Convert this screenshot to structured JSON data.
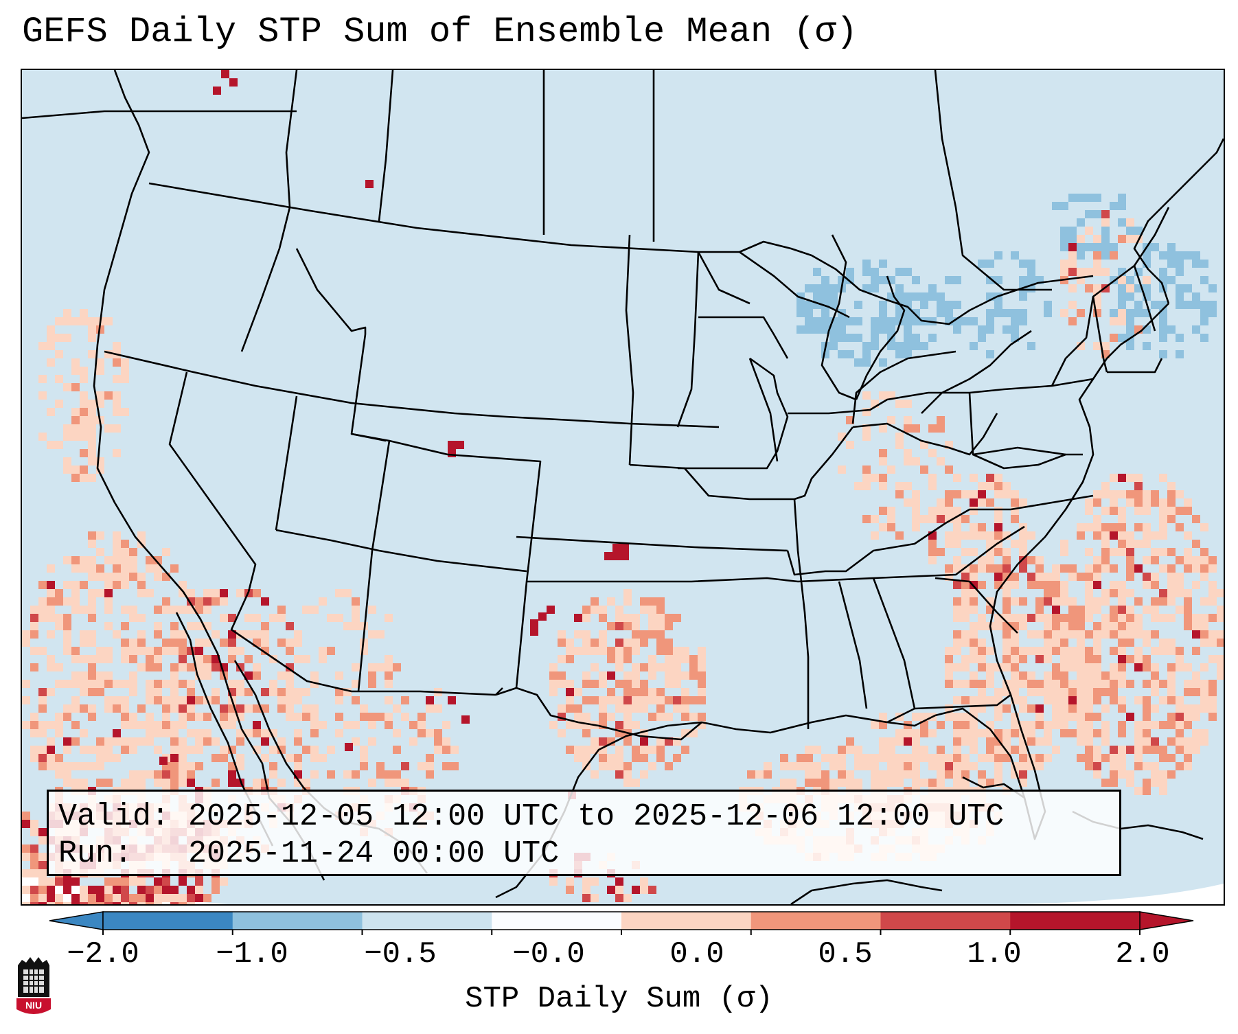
{
  "title": "GEFS Daily STP Sum of Ensemble Mean (σ)",
  "info": {
    "valid": "Valid: 2025-12-05 12:00 UTC to 2025-12-06 12:00 UTC",
    "run": "Run:   2025-11-24 00:00 UTC"
  },
  "colorbar": {
    "label": "STP Daily Sum (σ)",
    "ticks": [
      "−2.0",
      "−1.0",
      "−0.5",
      "−0.0",
      "0.0",
      "0.5",
      "1.0",
      "2.0"
    ],
    "colors": [
      "#3b87c2",
      "#8fc1de",
      "#cde3ef",
      "#fbfdff",
      "#fcd5c2",
      "#f0967b",
      "#d0484a",
      "#b5152b"
    ]
  },
  "colors": {
    "background_field": "#d1e5f0",
    "outside": "#ffffff",
    "borders": "#000000"
  },
  "logo": {
    "name": "NIU"
  }
}
